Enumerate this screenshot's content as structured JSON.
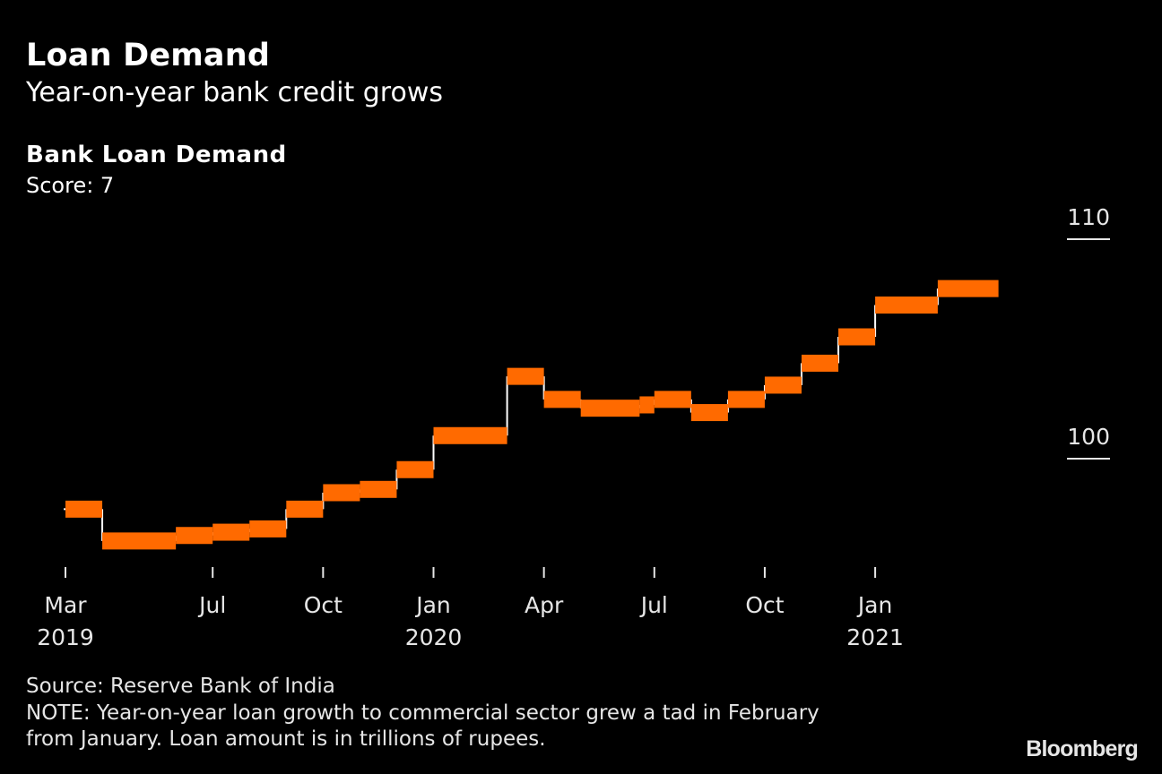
{
  "header": {
    "title": "Loan Demand",
    "subtitle": "Year-on-year bank credit grows",
    "series_title": "Bank Loan Demand",
    "series_subtitle": "Score: 7"
  },
  "footer": {
    "source": "Source: Reserve Bank of India",
    "note_line1": "NOTE: Year-on-year loan growth to commercial sector grew a tad in February",
    "note_line2": "from January. Loan amount is in trillions of rupees.",
    "logo": "Bloomberg"
  },
  "colors": {
    "background": "#000000",
    "series": "#ff6a00",
    "connector": "#ffffff",
    "text": "#e6e6e6"
  },
  "chart_data": {
    "type": "step",
    "title": "Bank Loan Demand",
    "subtitle": "Score: 7",
    "xlabel": "",
    "ylabel": "",
    "ylim": [
      95,
      110
    ],
    "y_ticks": [
      100,
      110
    ],
    "y_tick_position": "right",
    "grid": false,
    "x_ticks": [
      {
        "month_index": 0,
        "label": "Mar",
        "year": "2019"
      },
      {
        "month_index": 4,
        "label": "Jul",
        "year": ""
      },
      {
        "month_index": 7,
        "label": "Oct",
        "year": ""
      },
      {
        "month_index": 10,
        "label": "Jan",
        "year": "2020"
      },
      {
        "month_index": 13,
        "label": "Apr",
        "year": ""
      },
      {
        "month_index": 16,
        "label": "Jul",
        "year": ""
      },
      {
        "month_index": 19,
        "label": "Oct",
        "year": ""
      },
      {
        "month_index": 22,
        "label": "Jan",
        "year": "2021"
      }
    ],
    "x_range_months_from_mar_2019": [
      -0.05,
      25.5
    ],
    "series": [
      {
        "name": "Bank Loan Demand",
        "segments": [
          {
            "start": 0,
            "end": 1,
            "value": 97.7
          },
          {
            "start": 1,
            "end": 3,
            "value": 96.25
          },
          {
            "start": 3,
            "end": 4,
            "value": 96.5
          },
          {
            "start": 4,
            "end": 5,
            "value": 96.65
          },
          {
            "start": 5,
            "end": 6,
            "value": 96.8
          },
          {
            "start": 6,
            "end": 7,
            "value": 97.7
          },
          {
            "start": 7,
            "end": 8,
            "value": 98.45
          },
          {
            "start": 8,
            "end": 9,
            "value": 98.6
          },
          {
            "start": 9,
            "end": 10,
            "value": 99.5
          },
          {
            "start": 10,
            "end": 12,
            "value": 101.05
          },
          {
            "start": 12,
            "end": 13,
            "value": 103.75
          },
          {
            "start": 13,
            "end": 14,
            "value": 102.7
          },
          {
            "start": 14,
            "end": 15.6,
            "value": 102.3
          },
          {
            "start": 15.6,
            "end": 16,
            "value": 102.45
          },
          {
            "start": 16,
            "end": 17,
            "value": 102.7
          },
          {
            "start": 17,
            "end": 18,
            "value": 102.1
          },
          {
            "start": 18,
            "end": 19,
            "value": 102.7
          },
          {
            "start": 19,
            "end": 20,
            "value": 103.35
          },
          {
            "start": 20,
            "end": 21,
            "value": 104.35
          },
          {
            "start": 21,
            "end": 22,
            "value": 105.55
          },
          {
            "start": 22,
            "end": 23.7,
            "value": 107.0
          },
          {
            "start": 23.7,
            "end": 25.35,
            "value": 107.75
          }
        ]
      }
    ]
  }
}
